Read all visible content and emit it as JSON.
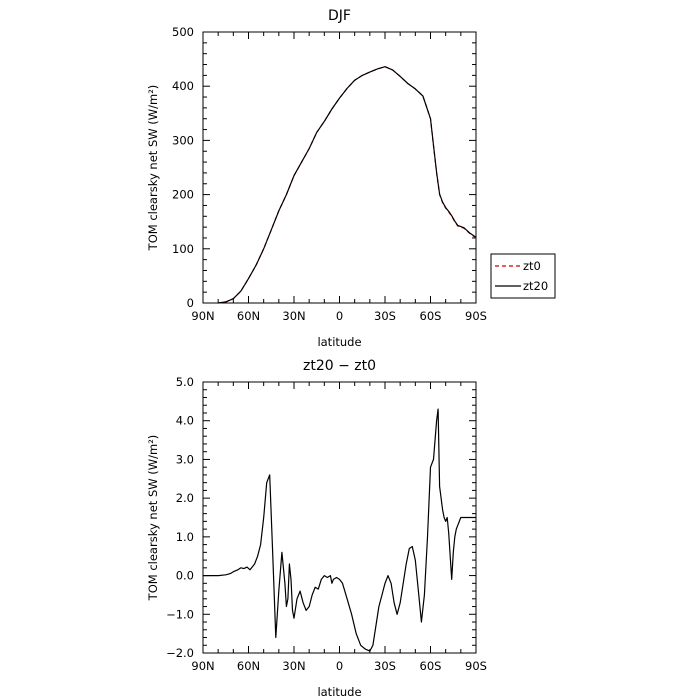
{
  "chart_data": [
    {
      "type": "line",
      "title": "DJF",
      "xlabel": "latitude",
      "ylabel": "TOM clearsky net SW (W/m²)",
      "x_tick_labels": [
        "90N",
        "60N",
        "30N",
        "0",
        "30S",
        "60S",
        "90S"
      ],
      "x_tick_values": [
        90,
        60,
        30,
        0,
        -30,
        -60,
        -90
      ],
      "xlim": [
        90,
        -90
      ],
      "y_tick_labels": [
        "0",
        "100",
        "200",
        "300",
        "400",
        "500"
      ],
      "y_tick_values": [
        0,
        100,
        200,
        300,
        400,
        500
      ],
      "ylim": [
        0,
        500
      ],
      "legend_placement": "outside-right",
      "series": [
        {
          "name": "zt0",
          "color": "#cc0000",
          "dash": "dashed",
          "x": [
            80,
            75,
            70,
            65,
            60,
            55,
            50,
            45,
            40,
            35,
            30,
            25,
            20,
            15,
            10,
            5,
            0,
            -5,
            -10,
            -15,
            -20,
            -25,
            -30,
            -35,
            -40,
            -45,
            -50,
            -55,
            -60,
            -62,
            -64,
            -66,
            -68,
            -70,
            -72,
            -74,
            -76,
            -78,
            -80,
            -82,
            -84,
            -86,
            -88,
            -90
          ],
          "y": [
            0,
            2,
            8,
            22,
            45,
            70,
            100,
            135,
            170,
            200,
            235,
            260,
            285,
            315,
            335,
            358,
            378,
            396,
            411,
            420,
            426,
            432,
            436,
            430,
            418,
            405,
            395,
            382,
            340,
            290,
            240,
            200,
            185,
            175,
            168,
            160,
            150,
            142,
            140,
            138,
            133,
            128,
            124,
            120
          ]
        },
        {
          "name": "zt20",
          "color": "#000000",
          "dash": "solid",
          "x": [
            80,
            75,
            70,
            65,
            60,
            55,
            50,
            45,
            40,
            35,
            30,
            25,
            20,
            15,
            10,
            5,
            0,
            -5,
            -10,
            -15,
            -20,
            -25,
            -30,
            -35,
            -40,
            -45,
            -50,
            -55,
            -60,
            -62,
            -64,
            -66,
            -68,
            -70,
            -72,
            -74,
            -76,
            -78,
            -80,
            -82,
            -84,
            -86,
            -88,
            -90
          ],
          "y": [
            0,
            2,
            8,
            22,
            45,
            70,
            100,
            135,
            170,
            200,
            235,
            260,
            285,
            315,
            335,
            358,
            378,
            396,
            411,
            420,
            426,
            432,
            436,
            430,
            418,
            405,
            395,
            382,
            340,
            291,
            241,
            201,
            186,
            176,
            169,
            161,
            151,
            143,
            141,
            139,
            134,
            129,
            125,
            121
          ]
        }
      ]
    },
    {
      "type": "line",
      "title": "zt20 − zt0",
      "xlabel": "latitude",
      "ylabel": "TOM clearsky net SW (W/m²)",
      "x_tick_labels": [
        "90N",
        "60N",
        "30N",
        "0",
        "30S",
        "60S",
        "90S"
      ],
      "x_tick_values": [
        90,
        60,
        30,
        0,
        -30,
        -60,
        -90
      ],
      "xlim": [
        90,
        -90
      ],
      "y_tick_labels": [
        "−2.0",
        "−1.0",
        "0.0",
        "1.0",
        "2.0",
        "3.0",
        "4.0",
        "5.0"
      ],
      "y_tick_values": [
        -2,
        -1,
        0,
        1,
        2,
        3,
        4,
        5
      ],
      "ylim": [
        -2,
        5
      ],
      "series": [
        {
          "color": "#000000",
          "x": [
            90,
            80,
            75,
            72,
            70,
            67,
            65,
            63,
            61,
            59,
            56,
            54,
            52,
            50,
            48,
            46,
            44,
            42,
            40,
            38,
            36,
            35,
            34,
            33,
            32,
            31,
            30,
            28,
            26,
            24,
            22,
            20,
            18,
            16,
            14,
            12,
            10,
            8,
            6,
            5,
            4,
            2,
            0,
            -2,
            -5,
            -8,
            -11,
            -14,
            -17,
            -20,
            -22,
            -24,
            -26,
            -28,
            -30,
            -32,
            -34,
            -36,
            -38,
            -40,
            -42,
            -44,
            -46,
            -48,
            -50,
            -52,
            -54,
            -56,
            -58,
            -60,
            -62,
            -64,
            -65,
            -66,
            -67,
            -68,
            -69,
            -70,
            -71,
            -72,
            -73,
            -74,
            -75,
            -76,
            -77,
            -78,
            -79,
            -80,
            -81,
            -82,
            -83,
            -84,
            -85,
            -86,
            -87,
            -88,
            -89,
            -90
          ],
          "y": [
            0.0,
            0.0,
            0.02,
            0.05,
            0.1,
            0.15,
            0.2,
            0.18,
            0.22,
            0.15,
            0.3,
            0.5,
            0.8,
            1.5,
            2.4,
            2.6,
            0.5,
            -1.6,
            -0.4,
            0.6,
            -0.2,
            -0.8,
            -0.6,
            0.3,
            -0.1,
            -0.9,
            -1.1,
            -0.6,
            -0.4,
            -0.7,
            -0.9,
            -0.8,
            -0.5,
            -0.3,
            -0.35,
            -0.1,
            0.0,
            -0.05,
            0.0,
            -0.2,
            -0.1,
            -0.05,
            -0.1,
            -0.2,
            -0.6,
            -1.0,
            -1.5,
            -1.8,
            -1.9,
            -1.95,
            -1.8,
            -1.3,
            -0.8,
            -0.5,
            -0.2,
            0.0,
            -0.2,
            -0.7,
            -1.0,
            -0.7,
            -0.2,
            0.3,
            0.7,
            0.75,
            0.4,
            -0.4,
            -1.2,
            -0.5,
            1.0,
            2.8,
            3.0,
            4.0,
            4.3,
            2.3,
            2.0,
            1.7,
            1.5,
            1.4,
            1.5,
            1.1,
            0.5,
            -0.1,
            0.6,
            1.0,
            1.2,
            1.3,
            1.4,
            1.5,
            1.5,
            1.5,
            1.5,
            1.5,
            1.5,
            1.5,
            1.5,
            1.5,
            1.5,
            1.5
          ]
        }
      ]
    }
  ],
  "legend": {
    "zt0_label": "zt0",
    "zt20_label": "zt20"
  }
}
